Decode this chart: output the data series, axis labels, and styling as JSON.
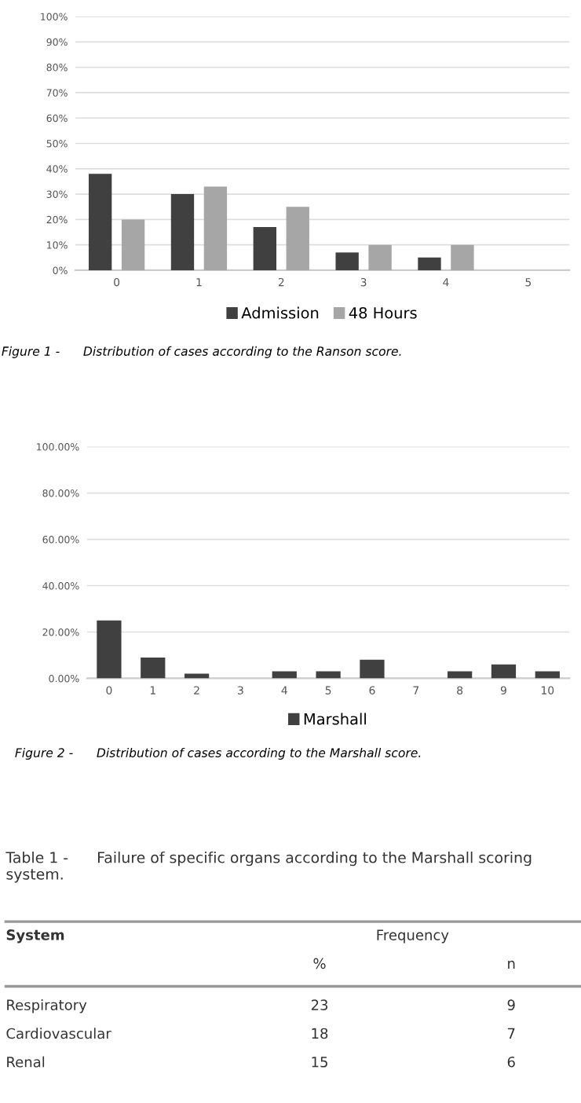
{
  "chart_data": [
    {
      "type": "bar",
      "categories": [
        "0",
        "1",
        "2",
        "3",
        "4",
        "5"
      ],
      "series": [
        {
          "name": "Admission",
          "color": "#404040",
          "values": [
            38,
            30,
            17,
            7,
            5,
            0
          ]
        },
        {
          "name": "48 Hours",
          "color": "#a6a6a6",
          "values": [
            20,
            33,
            25,
            10,
            10,
            0
          ]
        }
      ],
      "ylim": [
        0,
        100
      ],
      "yticks": [
        {
          "value": 0,
          "label": "0%"
        },
        {
          "value": 10,
          "label": "10%"
        },
        {
          "value": 20,
          "label": "20%"
        },
        {
          "value": 30,
          "label": "30%"
        },
        {
          "value": 40,
          "label": "40%"
        },
        {
          "value": 50,
          "label": "50%"
        },
        {
          "value": 60,
          "label": "60%"
        },
        {
          "value": 70,
          "label": "70%"
        },
        {
          "value": 80,
          "label": "80%"
        },
        {
          "value": 90,
          "label": "90%"
        },
        {
          "value": 100,
          "label": "100%"
        }
      ],
      "grid": "y",
      "legend": "bottom",
      "annotations": [
        "Figure 1 -      Distribution of cases according to the Ranson score."
      ]
    },
    {
      "type": "bar",
      "categories": [
        "0",
        "1",
        "2",
        "3",
        "4",
        "5",
        "6",
        "7",
        "8",
        "9",
        "10"
      ],
      "series": [
        {
          "name": "Marshall",
          "color": "#404040",
          "values": [
            25,
            9,
            2,
            0,
            3,
            3,
            8,
            0,
            3,
            6,
            3
          ]
        }
      ],
      "ylim": [
        0,
        100
      ],
      "yticks": [
        {
          "value": 0,
          "label": "0.00%"
        },
        {
          "value": 20,
          "label": "20.00%"
        },
        {
          "value": 40,
          "label": "40.00%"
        },
        {
          "value": 60,
          "label": "60.00%"
        },
        {
          "value": 80,
          "label": "80.00%"
        },
        {
          "value": 100,
          "label": "100.00%"
        }
      ],
      "grid": "y",
      "legend": "bottom",
      "annotations": [
        "Figure 2 -      Distribution of cases according to the Marshall score."
      ]
    },
    {
      "type": "other",
      "title": "Table 1 -      Failure of specific organs according to the Marshall scoring system.",
      "xlabel": "System",
      "legend_title": "Frequency",
      "data_labels": true,
      "categories": [
        "Respiratory",
        "Cardiovascular",
        "Renal"
      ],
      "series": [
        {
          "name": "%",
          "values": [
            23,
            18,
            15
          ]
        },
        {
          "name": "n",
          "values": [
            9,
            7,
            6
          ]
        }
      ]
    }
  ]
}
